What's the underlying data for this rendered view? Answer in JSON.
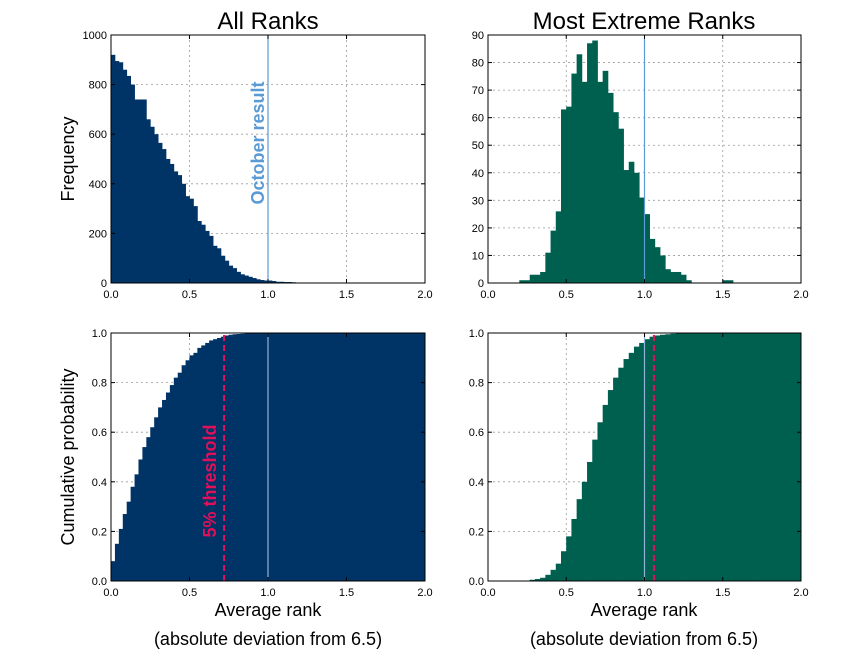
{
  "chart_data": [
    {
      "id": "p1",
      "type": "bar",
      "title": "All Ranks",
      "xlabel": "",
      "ylabel": "Frequency",
      "xlim": [
        0,
        2.0
      ],
      "ylim": [
        0,
        1000
      ],
      "xticks": [
        "0.0",
        "0.5",
        "1.0",
        "1.5",
        "2.0"
      ],
      "yticks": [
        "0",
        "200",
        "400",
        "600",
        "800",
        "1000"
      ],
      "grid": true,
      "color": "#003366",
      "bin_start": 0.0,
      "bin_width": 0.025,
      "values": [
        920,
        895,
        890,
        860,
        835,
        800,
        740,
        740,
        740,
        660,
        630,
        600,
        565,
        540,
        500,
        480,
        450,
        435,
        400,
        350,
        340,
        310,
        250,
        235,
        210,
        190,
        150,
        140,
        110,
        90,
        70,
        60,
        45,
        35,
        30,
        25,
        20,
        15,
        12,
        10,
        10,
        8,
        5,
        5,
        4,
        4,
        3,
        2,
        2,
        1
      ],
      "vline": {
        "x": 1.0,
        "label": "October result",
        "color": "#5b9bd5"
      }
    },
    {
      "id": "p2",
      "type": "bar",
      "title": "Most Extreme Ranks",
      "xlabel": "",
      "ylabel": "",
      "xlim": [
        0,
        2.0
      ],
      "ylim": [
        0,
        90
      ],
      "xticks": [
        "0.0",
        "0.5",
        "1.0",
        "1.5",
        "2.0"
      ],
      "yticks": [
        "0",
        "10",
        "20",
        "30",
        "40",
        "50",
        "60",
        "70",
        "80",
        "90"
      ],
      "grid": true,
      "color": "#006050",
      "bin_start": 0.2,
      "bin_width": 0.0333,
      "values": [
        1,
        1,
        3,
        3,
        4,
        11,
        19,
        26,
        63,
        64,
        76,
        83,
        73,
        87,
        88,
        73,
        77,
        69,
        62,
        56,
        41,
        44,
        40,
        31,
        25,
        16,
        13,
        10,
        5,
        4,
        4,
        3,
        1,
        0,
        0,
        0,
        0,
        0,
        0,
        1,
        1
      ],
      "vline": {
        "x": 1.0,
        "label": "",
        "color": "#5b9bd5"
      }
    },
    {
      "id": "p3",
      "type": "bar",
      "title": "",
      "xlabel": "Average rank",
      "sublabel": "(absolute deviation from 6.5)",
      "ylabel": "Cumulative probability",
      "xlim": [
        0,
        2.0
      ],
      "ylim": [
        0,
        1.0
      ],
      "xticks": [
        "0.0",
        "0.5",
        "1.0",
        "1.5",
        "2.0"
      ],
      "yticks": [
        "0.0",
        "0.2",
        "0.4",
        "0.6",
        "0.8",
        "1.0"
      ],
      "grid": true,
      "color": "#003366",
      "bin_start": 0.0,
      "bin_width": 0.025,
      "values": [
        0.08,
        0.15,
        0.21,
        0.27,
        0.32,
        0.38,
        0.43,
        0.49,
        0.54,
        0.58,
        0.62,
        0.66,
        0.7,
        0.73,
        0.76,
        0.79,
        0.82,
        0.84,
        0.87,
        0.89,
        0.91,
        0.92,
        0.94,
        0.95,
        0.96,
        0.97,
        0.975,
        0.98,
        0.985,
        0.99,
        0.993,
        0.995,
        0.996,
        0.997,
        0.998,
        0.999,
        0.999,
        1.0,
        1.0,
        1.0,
        1.0,
        1.0,
        1.0,
        1.0,
        1.0,
        1.0,
        1.0,
        1.0,
        1.0,
        1.0,
        1.0,
        1.0,
        1.0,
        1.0,
        1.0,
        1.0,
        1.0,
        1.0,
        1.0,
        1.0,
        1.0,
        1.0,
        1.0,
        1.0,
        1.0,
        1.0,
        1.0,
        1.0,
        1.0,
        1.0,
        1.0,
        1.0,
        1.0,
        1.0,
        1.0,
        1.0,
        1.0,
        1.0,
        1.0,
        1.0
      ],
      "vline": {
        "x": 1.0,
        "label": "",
        "color": "#8fb4d8"
      },
      "threshold": {
        "x": 0.72,
        "label": "5% threshold",
        "color": "#e0105a"
      }
    },
    {
      "id": "p4",
      "type": "bar",
      "title": "",
      "xlabel": "Average rank",
      "sublabel": "(absolute deviation from 6.5)",
      "ylabel": "",
      "xlim": [
        0,
        2.0
      ],
      "ylim": [
        0,
        1.0
      ],
      "xticks": [
        "0.0",
        "0.5",
        "1.0",
        "1.5",
        "2.0"
      ],
      "yticks": [
        "0.0",
        "0.2",
        "0.4",
        "0.6",
        "0.8",
        "1.0"
      ],
      "grid": true,
      "color": "#006050",
      "bin_start": 0.2,
      "bin_width": 0.0333,
      "values": [
        0.001,
        0.002,
        0.005,
        0.008,
        0.013,
        0.025,
        0.045,
        0.07,
        0.12,
        0.18,
        0.25,
        0.33,
        0.4,
        0.48,
        0.57,
        0.64,
        0.71,
        0.77,
        0.82,
        0.86,
        0.895,
        0.92,
        0.945,
        0.96,
        0.975,
        0.985,
        0.99,
        0.993,
        0.995,
        0.997,
        0.998,
        0.999,
        0.999,
        1.0,
        1.0,
        1.0,
        1.0,
        1.0,
        1.0,
        1.0,
        1.0,
        1.0,
        1.0,
        1.0,
        1.0,
        1.0,
        1.0,
        1.0,
        1.0,
        1.0,
        1.0,
        1.0,
        1.0,
        1.0
      ],
      "vline": {
        "x": 1.0,
        "label": "",
        "color": "#8fb4d8"
      },
      "threshold": {
        "x": 1.06,
        "label": "",
        "color": "#e0105a"
      }
    }
  ]
}
